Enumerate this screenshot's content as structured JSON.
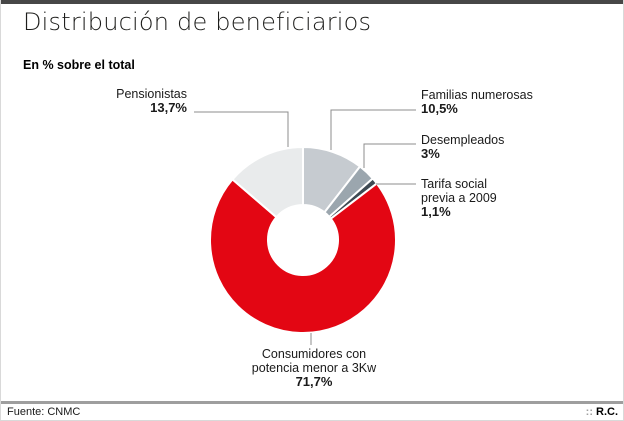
{
  "header": {
    "title": "Distribución de beneficiarios",
    "subtitle": "En % sobre el total"
  },
  "footer": {
    "source_label": "Fuente: CNMC",
    "credit_prefix": "::",
    "credit": "R.C."
  },
  "colors": {
    "accent_red": "#e30613",
    "topbar": "#474747",
    "leader_line": "#8c8c8c",
    "footer_rule": "#9e9e9e"
  },
  "chart_data": {
    "type": "pie",
    "variant": "donut",
    "title": "Distribución de beneficiarios",
    "subtitle": "En % sobre el total",
    "units": "% sobre el total",
    "source": "CNMC",
    "start_angle_deg": 0,
    "direction": "clockwise",
    "legend_position": "callouts",
    "slices": [
      {
        "name": "Familias numerosas",
        "value": 10.5,
        "value_label": "10,5%",
        "color": "#c6cbd0",
        "lines": [
          "Familias numerosas"
        ]
      },
      {
        "name": "Desempleados",
        "value": 3,
        "value_label": "3%",
        "color": "#9ba6ae",
        "lines": [
          "Desempleados"
        ]
      },
      {
        "name": "Tarifa social previa a 2009",
        "value": 1.1,
        "value_label": "1,1%",
        "color": "#3e4a53",
        "lines": [
          "Tarifa social",
          "previa a 2009"
        ]
      },
      {
        "name": "Consumidores con potencia menor a 3Kw",
        "value": 71.7,
        "value_label": "71,7%",
        "color": "#e30613",
        "lines": [
          "Consumidores con",
          "potencia menor a 3Kw"
        ]
      },
      {
        "name": "Pensionistas",
        "value": 13.7,
        "value_label": "13,7%",
        "color": "#e9ebec",
        "lines": [
          "Pensionistas"
        ]
      }
    ]
  }
}
